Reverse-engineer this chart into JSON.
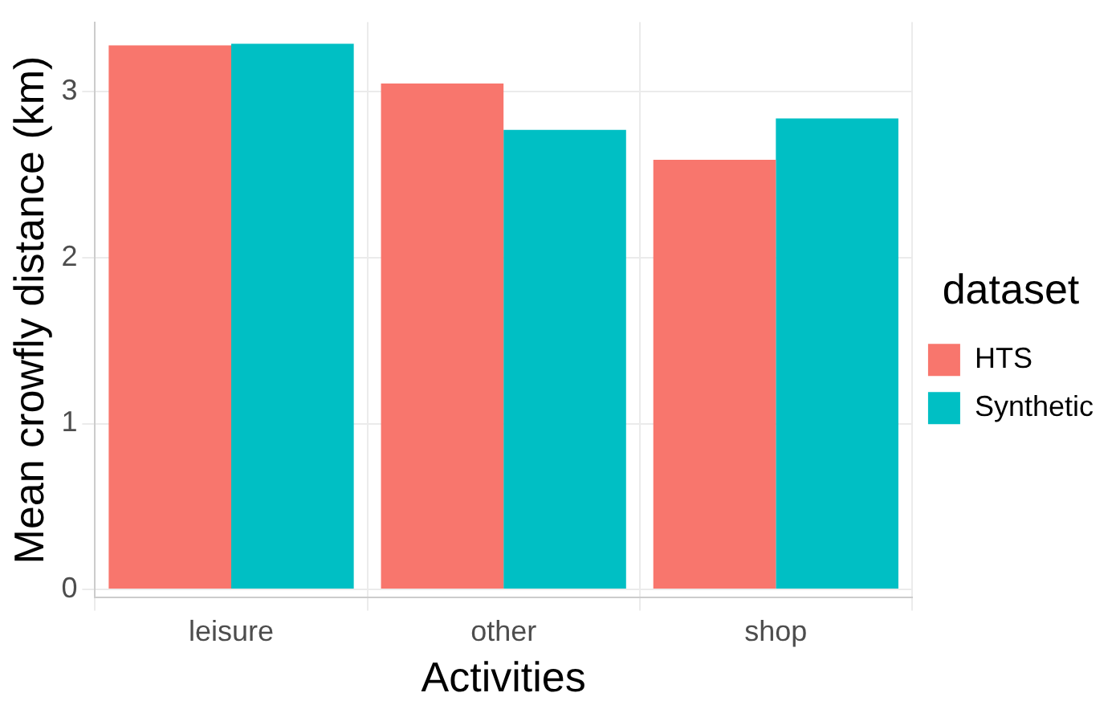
{
  "chart_data": {
    "type": "bar",
    "xlabel": "Activities",
    "ylabel": "Mean crowfly distance (km)",
    "legend_title": "dataset",
    "categories": [
      "leisure",
      "other",
      "shop"
    ],
    "series": [
      {
        "name": "HTS",
        "color": "#f8766d",
        "values": [
          3.28,
          3.05,
          2.59
        ]
      },
      {
        "name": "Synthetic",
        "color": "#00bfc4",
        "values": [
          3.29,
          2.77,
          2.84
        ]
      }
    ],
    "ylim": [
      -0.05,
      3.42
    ],
    "yticks": [
      0,
      1,
      2,
      3
    ],
    "grid": true,
    "legend": "right"
  }
}
